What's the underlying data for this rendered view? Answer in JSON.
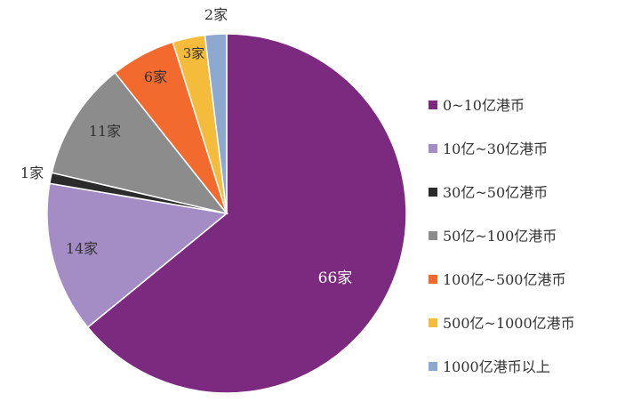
{
  "chart_data": {
    "type": "pie",
    "title": "",
    "unit_suffix": "家",
    "slices": [
      {
        "label": "0~10亿港币",
        "value": 66,
        "color": "#7b2a7f",
        "data_label": "66家"
      },
      {
        "label": "10亿~30亿港币",
        "value": 14,
        "color": "#a48cc4",
        "data_label": "14家"
      },
      {
        "label": "30亿~50亿港币",
        "value": 1,
        "color": "#2b2b2b",
        "data_label": "1家"
      },
      {
        "label": "50亿~100亿港币",
        "value": 11,
        "color": "#8c8c8c",
        "data_label": "11家"
      },
      {
        "label": "100亿~500亿港币",
        "value": 6,
        "color": "#f26a2e",
        "data_label": "6家"
      },
      {
        "label": "500亿~1000亿港币",
        "value": 3,
        "color": "#f5bb3a",
        "data_label": "3家"
      },
      {
        "label": "1000亿港币以上",
        "value": 2,
        "color": "#8ea9d0",
        "data_label": "2家"
      }
    ],
    "legend_position": "right",
    "start": "12 o'clock, clockwise",
    "text_color": "#333333"
  }
}
